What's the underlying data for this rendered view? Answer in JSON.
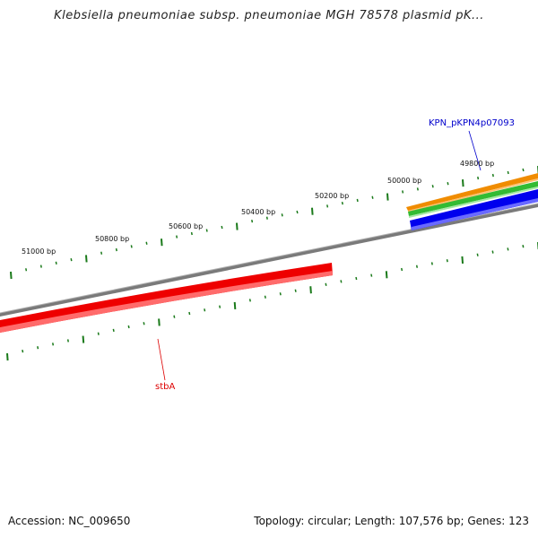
{
  "title": "Klebsiella pneumoniae subsp. pneumoniae MGH 78578 plasmid pK...",
  "footer": {
    "accession_label": "Accession: NC_009650",
    "summary_label": "Topology: circular; Length: 107,576 bp; Genes: 123"
  },
  "ruler": {
    "tick_labels": [
      "51000 bp",
      "50800 bp",
      "50600 bp",
      "50400 bp",
      "50200 bp",
      "50000 bp",
      "49800 bp"
    ]
  },
  "genes": {
    "stbA": {
      "label": "stbA",
      "color": "#dd0000"
    },
    "kpn": {
      "label": "KPN_pKPN4p07093",
      "color": "#0000cc"
    }
  },
  "colors": {
    "backbone": "#8a8a8a",
    "tick": "#1a7a1a",
    "orange_track": "#f08c00",
    "green_track": "#33bb33",
    "blue_track": "#0000ee",
    "red_track": "#ee0000"
  }
}
